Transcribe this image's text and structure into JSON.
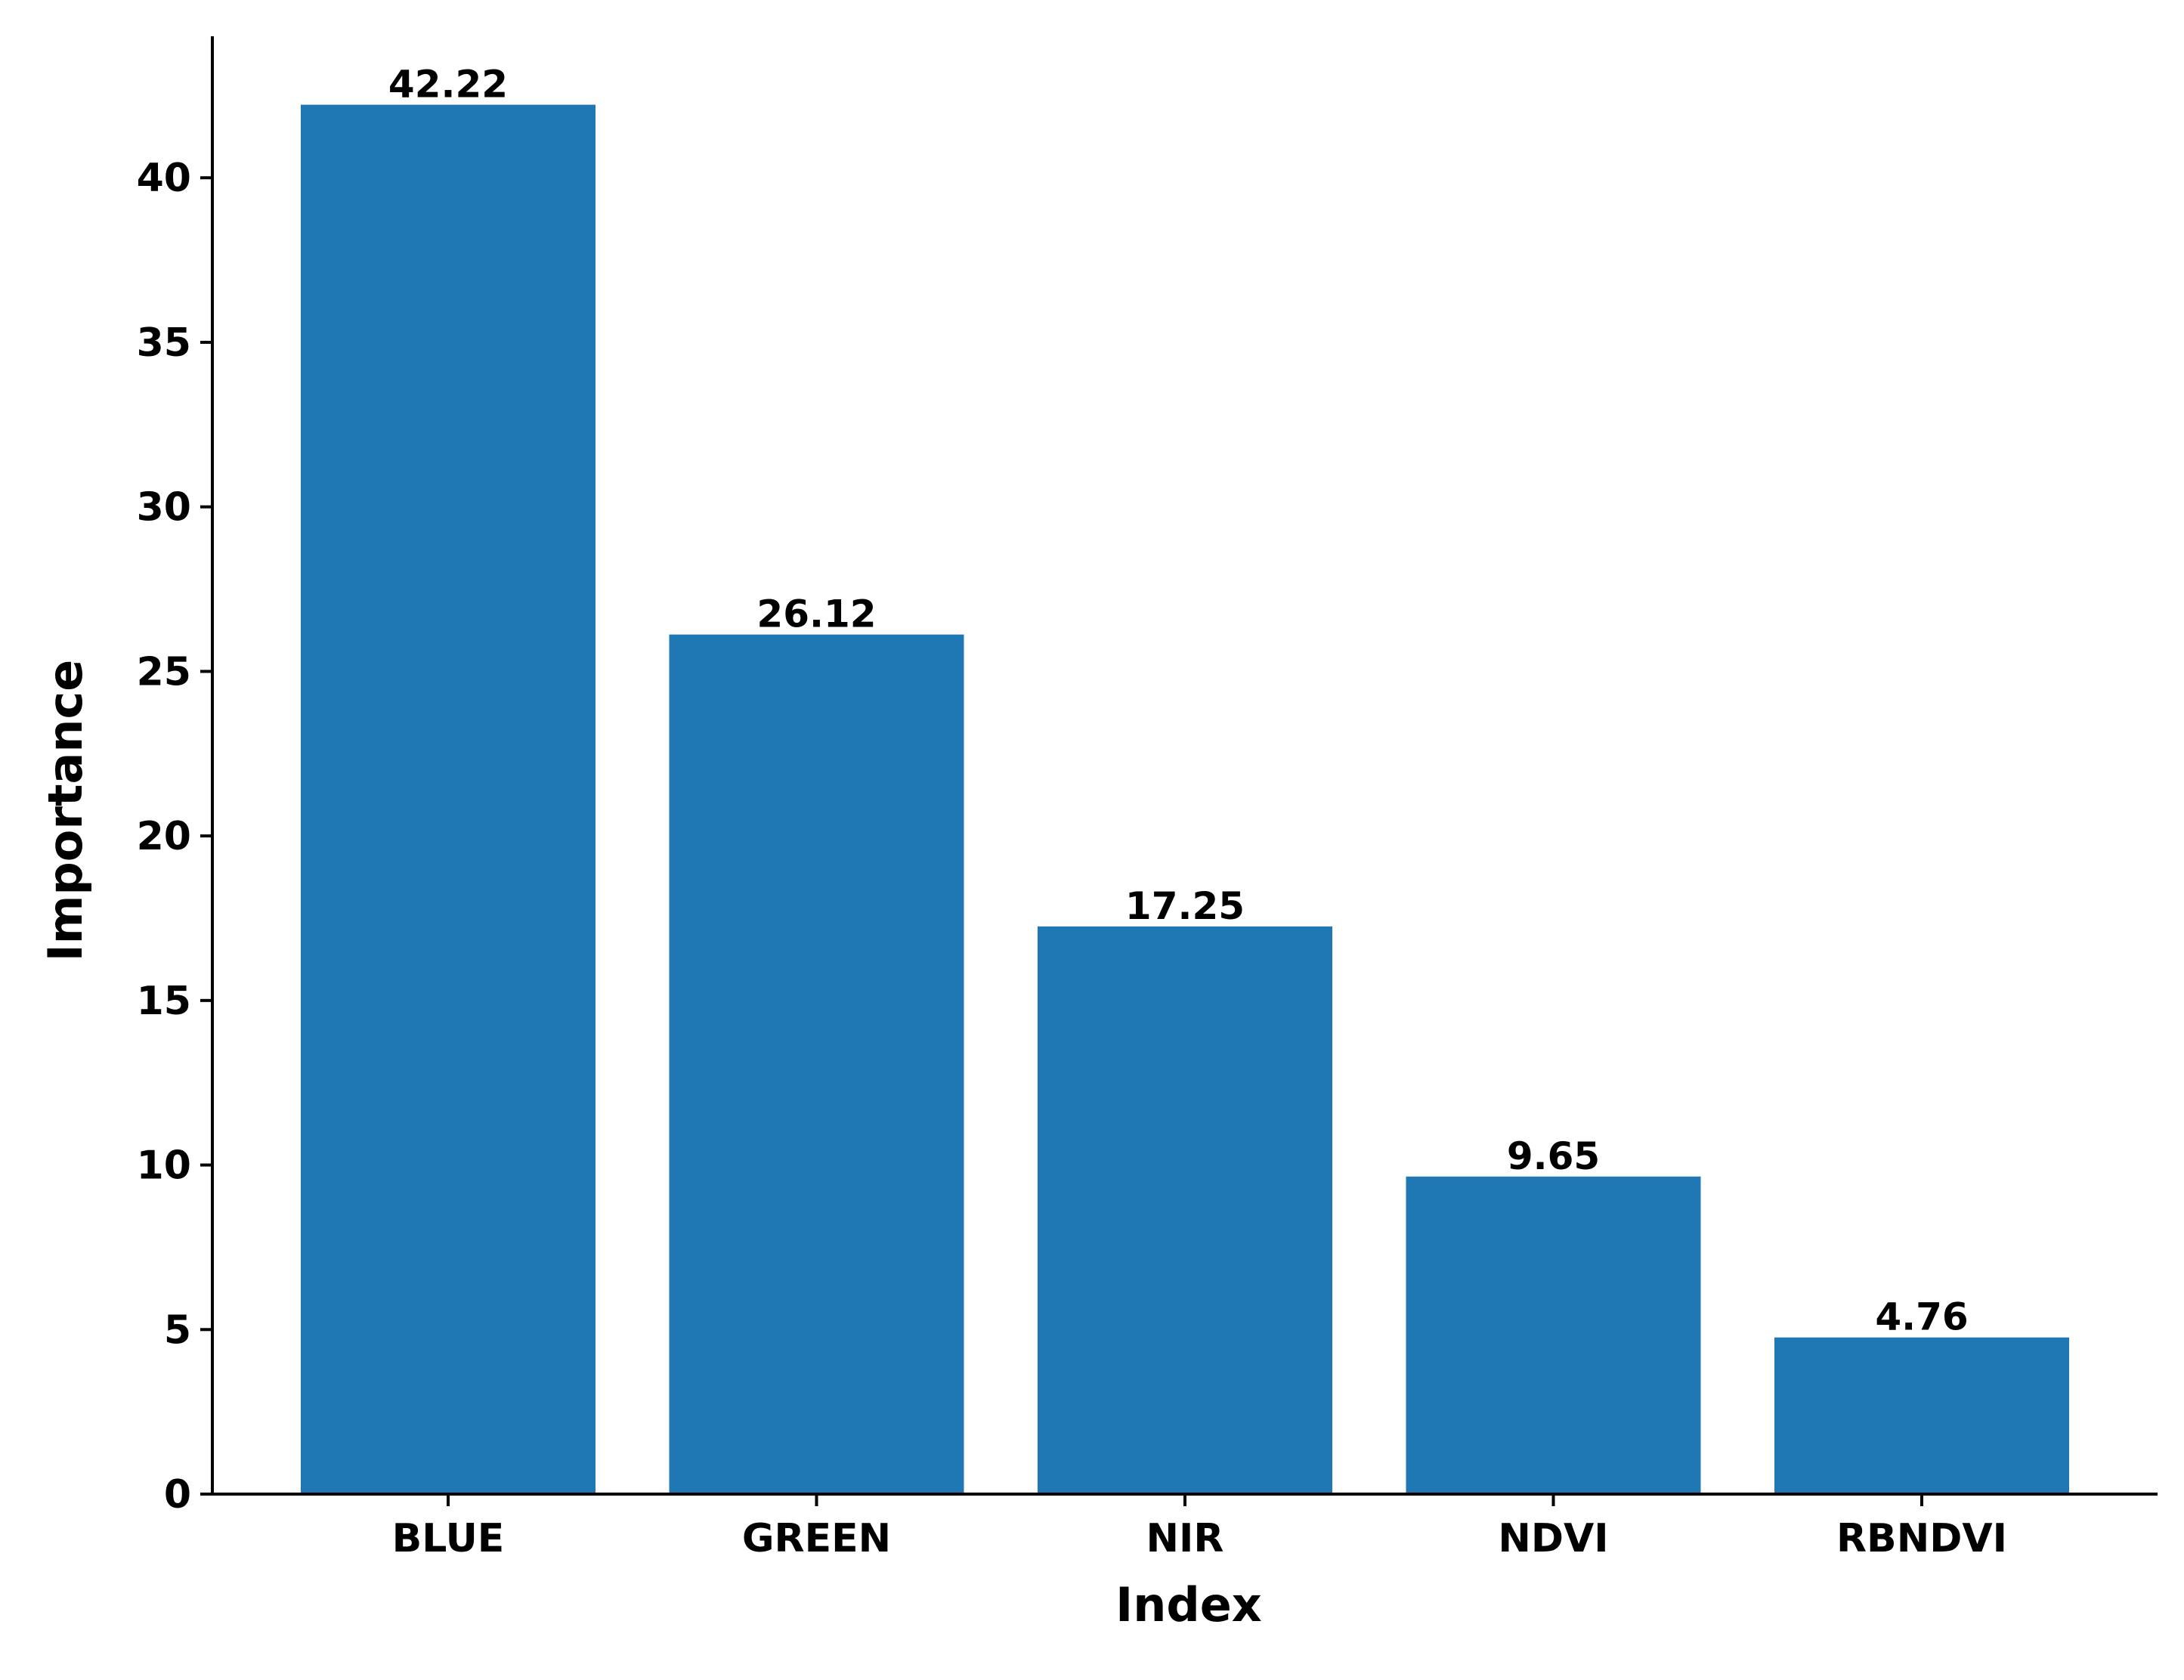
{
  "chart_data": {
    "type": "bar",
    "categories": [
      "BLUE",
      "GREEN",
      "NIR",
      "NDVI",
      "RBNDVI"
    ],
    "values": [
      42.22,
      26.12,
      17.25,
      9.65,
      4.76
    ],
    "value_labels": [
      "42.22",
      "26.12",
      "17.25",
      "9.65",
      "4.76"
    ],
    "xlabel": "Index",
    "ylabel": "Importance",
    "ylim": [
      0,
      44.3
    ],
    "yticks": [
      0,
      5,
      10,
      15,
      20,
      25,
      30,
      35,
      40
    ],
    "ytick_labels": [
      "0",
      "5",
      "10",
      "15",
      "20",
      "25",
      "30",
      "35",
      "40"
    ],
    "bar_color": "#1f77b4",
    "grid": false,
    "legend": "none"
  }
}
